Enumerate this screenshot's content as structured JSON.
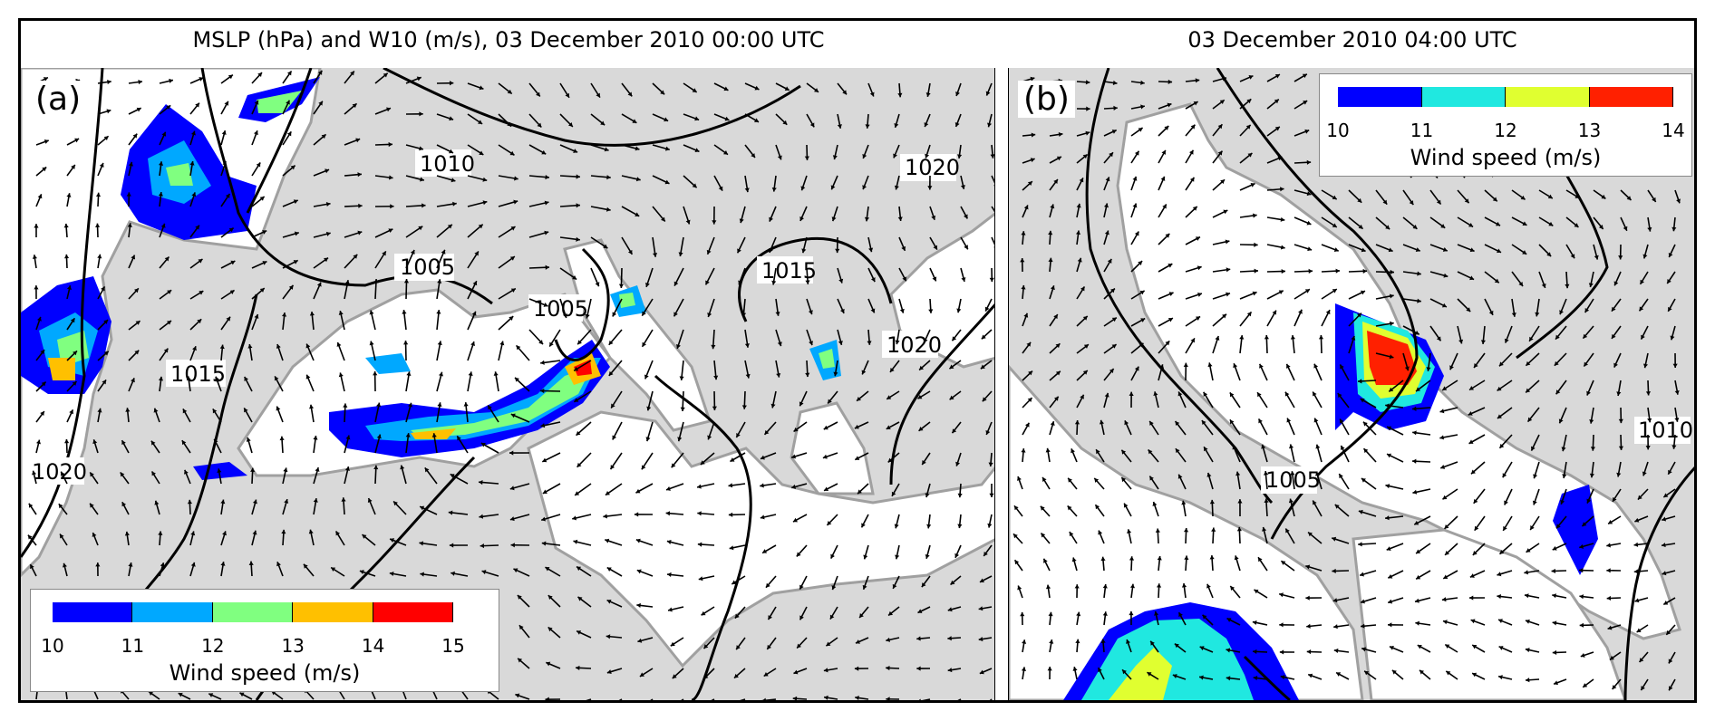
{
  "title_a": "MSLP (hPa) and W10 (m/s), 03 December 2010 00:00 UTC",
  "title_b": "03 December 2010 04:00 UTC",
  "panel_a": {
    "label": "(a)",
    "isobar_labels": [
      "1010",
      "1020",
      "1005",
      "1005",
      "1015",
      "1015",
      "1020",
      "1020"
    ],
    "legend": {
      "title": "Wind speed (m/s)",
      "ticks": [
        "10",
        "11",
        "12",
        "13",
        "14",
        "15"
      ],
      "colors": [
        "#0000ff",
        "#00a8ff",
        "#80ff80",
        "#ffc000",
        "#ff0000"
      ]
    }
  },
  "panel_b": {
    "label": "(b)",
    "isobar_labels": [
      "1005",
      "1010"
    ],
    "legend": {
      "title": "Wind speed (m/s)",
      "ticks": [
        "10",
        "11",
        "12",
        "13",
        "14"
      ],
      "colors": [
        "#0000ff",
        "#20e8e0",
        "#e0ff30",
        "#ff2000"
      ]
    }
  },
  "colors": {
    "land": "#d9d9d9",
    "sea": "#ffffff",
    "coast": "#a0a0a0",
    "isobar": "#000000"
  }
}
